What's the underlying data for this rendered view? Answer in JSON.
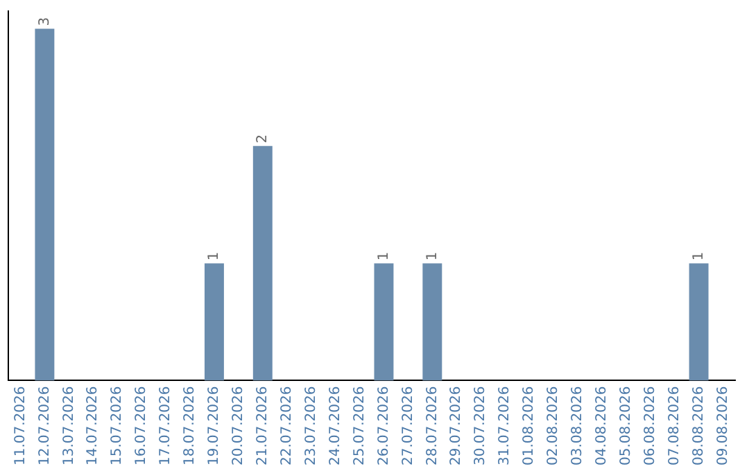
{
  "chart_data": {
    "type": "bar",
    "categories": [
      "11.07.2026",
      "12.07.2026",
      "13.07.2026",
      "14.07.2026",
      "15.07.2026",
      "16.07.2026",
      "17.07.2026",
      "18.07.2026",
      "19.07.2026",
      "20.07.2026",
      "21.07.2026",
      "22.07.2026",
      "23.07.2026",
      "24.07.2026",
      "25.07.2026",
      "26.07.2026",
      "27.07.2026",
      "28.07.2026",
      "29.07.2026",
      "30.07.2026",
      "31.07.2026",
      "01.08.2026",
      "02.08.2026",
      "03.08.2026",
      "04.08.2026",
      "05.08.2026",
      "06.08.2026",
      "07.08.2026",
      "08.08.2026",
      "09.08.2026"
    ],
    "values": [
      0,
      3,
      0,
      0,
      0,
      0,
      0,
      0,
      1,
      0,
      2,
      0,
      0,
      0,
      0,
      1,
      0,
      1,
      0,
      0,
      0,
      0,
      0,
      0,
      0,
      0,
      0,
      0,
      1,
      0
    ],
    "value_labels": [
      null,
      "3",
      null,
      null,
      null,
      null,
      null,
      null,
      "1",
      null,
      "2",
      null,
      null,
      null,
      null,
      "1",
      null,
      "1",
      null,
      null,
      null,
      null,
      null,
      null,
      null,
      null,
      null,
      null,
      "1",
      null
    ],
    "color": "#6a8cad",
    "grid": false,
    "legend": false
  }
}
